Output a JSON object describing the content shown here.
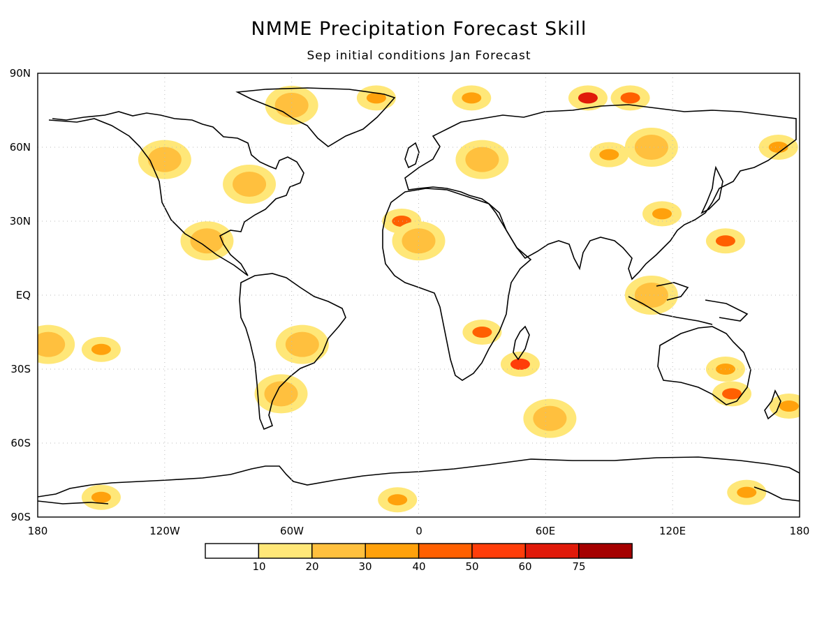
{
  "title": "NMME Precipitation Forecast Skill",
  "subtitle": "Sep initial conditions  Jan Forecast",
  "axes": {
    "lat_ticks": [
      "90N",
      "60N",
      "30N",
      "EQ",
      "30S",
      "60S",
      "90S"
    ],
    "lon_ticks": [
      "180",
      "120W",
      "60W",
      "0",
      "60E",
      "120E",
      "180"
    ],
    "grid": true
  },
  "colorbar": {
    "labels": [
      "10",
      "20",
      "30",
      "40",
      "50",
      "60",
      "75"
    ],
    "colors": [
      "#ffffff",
      "#ffe778",
      "#ffc03e",
      "#ffa10c",
      "#ff6001",
      "#ff3d0a",
      "#e01a0a",
      "#a50000"
    ]
  },
  "skill_regions": [
    {
      "lon": -60,
      "lat": 77,
      "level": 2
    },
    {
      "lon": -20,
      "lat": 80,
      "level": 3
    },
    {
      "lon": 25,
      "lat": 80,
      "level": 3
    },
    {
      "lon": 80,
      "lat": 80,
      "level": 6
    },
    {
      "lon": 100,
      "lat": 80,
      "level": 4
    },
    {
      "lon": -8,
      "lat": 30,
      "level": 4
    },
    {
      "lon": 0,
      "lat": 22,
      "level": 2
    },
    {
      "lon": 30,
      "lat": 55,
      "level": 2
    },
    {
      "lon": 90,
      "lat": 57,
      "level": 3
    },
    {
      "lon": 110,
      "lat": 60,
      "level": 2
    },
    {
      "lon": 170,
      "lat": 60,
      "level": 3
    },
    {
      "lon": -120,
      "lat": 55,
      "level": 2
    },
    {
      "lon": -80,
      "lat": 45,
      "level": 2
    },
    {
      "lon": -100,
      "lat": 22,
      "level": 2
    },
    {
      "lon": -55,
      "lat": -20,
      "level": 2
    },
    {
      "lon": -65,
      "lat": -40,
      "level": 2
    },
    {
      "lon": 30,
      "lat": -15,
      "level": 4
    },
    {
      "lon": 48,
      "lat": -28,
      "level": 5
    },
    {
      "lon": 145,
      "lat": -30,
      "level": 3
    },
    {
      "lon": 148,
      "lat": -40,
      "level": 4
    },
    {
      "lon": 145,
      "lat": 22,
      "level": 4
    },
    {
      "lon": 115,
      "lat": 33,
      "level": 3
    },
    {
      "lon": 110,
      "lat": 0,
      "level": 2
    },
    {
      "lon": -150,
      "lat": -22,
      "level": 3
    },
    {
      "lon": -175,
      "lat": -20,
      "level": 2
    },
    {
      "lon": -150,
      "lat": -82,
      "level": 3
    },
    {
      "lon": -10,
      "lat": -83,
      "level": 3
    },
    {
      "lon": 155,
      "lat": -80,
      "level": 3
    },
    {
      "lon": 62,
      "lat": -50,
      "level": 2
    },
    {
      "lon": 175,
      "lat": -45,
      "level": 3
    }
  ]
}
